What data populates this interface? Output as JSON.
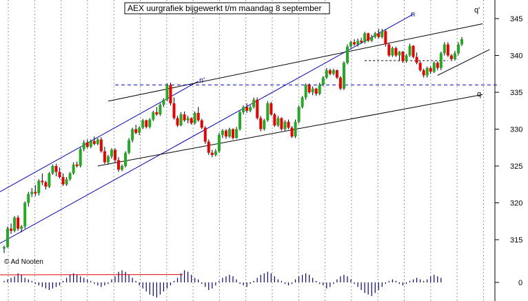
{
  "chart_data": {
    "type": "candlestick",
    "title": "AEX uurgrafiek bijgewerkt t/m maandag 8 september",
    "credit": "© Ad Nooten",
    "ylim": [
      310,
      348
    ],
    "yticks": [
      345,
      340,
      335,
      330,
      325,
      320,
      315
    ],
    "volume_tick": "0",
    "line_labels": {
      "q_prime": "q'",
      "q": "q",
      "n_top": "n",
      "n_mid": "n'"
    },
    "colors": {
      "up": "#22aa22",
      "down": "#ee0000",
      "channel_blue": "#0000cc",
      "trend_black": "#000000",
      "dash_blue": "#0000cc",
      "grid": "#999999",
      "volume": "#000080",
      "volume_line": "#dd0000"
    },
    "candles": [
      [
        313.8,
        314.2,
        313.2,
        314.0
      ],
      [
        314.0,
        316.8,
        313.9,
        316.5
      ],
      [
        316.5,
        317.2,
        315.8,
        316.2
      ],
      [
        316.2,
        318.2,
        316.0,
        318.0
      ],
      [
        318.0,
        318.3,
        316.2,
        316.5
      ],
      [
        316.5,
        317.0,
        316.0,
        316.8
      ],
      [
        316.8,
        320.2,
        316.5,
        320.0
      ],
      [
        320.0,
        321.5,
        319.5,
        321.2
      ],
      [
        321.2,
        322.0,
        320.8,
        321.5
      ],
      [
        321.5,
        322.4,
        320.9,
        321.3
      ],
      [
        321.3,
        323.2,
        321.0,
        323.0
      ],
      [
        323.0,
        324.0,
        322.4,
        322.8
      ],
      [
        322.8,
        323.0,
        321.8,
        322.2
      ],
      [
        322.2,
        324.2,
        322.0,
        324.0
      ],
      [
        324.0,
        325.2,
        323.8,
        325.0
      ],
      [
        325.0,
        325.3,
        323.6,
        324.2
      ],
      [
        324.2,
        324.8,
        323.3,
        323.5
      ],
      [
        323.5,
        324.0,
        322.3,
        322.5
      ],
      [
        322.5,
        323.5,
        322.3,
        323.2
      ],
      [
        323.2,
        324.2,
        323.0,
        324.0
      ],
      [
        324.0,
        325.5,
        323.8,
        325.2
      ],
      [
        325.2,
        325.6,
        324.8,
        325.0
      ],
      [
        325.0,
        327.5,
        324.8,
        327.3
      ],
      [
        327.3,
        328.5,
        327.0,
        328.2
      ],
      [
        328.2,
        328.6,
        327.4,
        327.6
      ],
      [
        327.6,
        328.6,
        327.4,
        328.4
      ],
      [
        328.4,
        329.0,
        327.8,
        328.0
      ],
      [
        328.0,
        328.8,
        327.8,
        328.6
      ],
      [
        328.6,
        328.9,
        326.8,
        327.0
      ],
      [
        327.0,
        327.6,
        325.3,
        325.5
      ],
      [
        325.5,
        326.5,
        325.3,
        326.3
      ],
      [
        326.3,
        327.4,
        326.0,
        327.2
      ],
      [
        327.2,
        327.4,
        325.5,
        325.8
      ],
      [
        325.8,
        326.2,
        324.2,
        324.5
      ],
      [
        324.5,
        325.2,
        324.3,
        325.0
      ],
      [
        325.0,
        327.0,
        324.8,
        326.8
      ],
      [
        326.8,
        328.8,
        326.6,
        328.5
      ],
      [
        328.5,
        330.2,
        328.2,
        330.0
      ],
      [
        330.0,
        330.6,
        329.3,
        329.5
      ],
      [
        329.5,
        330.4,
        329.2,
        330.2
      ],
      [
        330.2,
        331.4,
        330.0,
        331.2
      ],
      [
        331.2,
        331.3,
        330.1,
        330.3
      ],
      [
        330.3,
        331.5,
        330.1,
        331.3
      ],
      [
        331.3,
        332.5,
        331.1,
        332.3
      ],
      [
        332.3,
        333.0,
        331.8,
        332.0
      ],
      [
        332.0,
        333.5,
        331.8,
        333.3
      ],
      [
        333.3,
        334.2,
        333.0,
        334.0
      ],
      [
        334.0,
        336.2,
        333.8,
        336.0
      ],
      [
        336.0,
        336.3,
        333.2,
        333.5
      ],
      [
        333.5,
        334.3,
        331.3,
        331.5
      ],
      [
        331.5,
        331.8,
        330.3,
        330.5
      ],
      [
        330.5,
        332.3,
        330.4,
        332.0
      ],
      [
        332.0,
        332.4,
        331.0,
        331.2
      ],
      [
        331.2,
        331.8,
        330.8,
        331.5
      ],
      [
        331.5,
        331.6,
        330.6,
        330.8
      ],
      [
        330.8,
        332.4,
        330.6,
        332.2
      ],
      [
        332.2,
        333.0,
        331.0,
        331.2
      ],
      [
        331.2,
        331.4,
        330.0,
        330.2
      ],
      [
        330.2,
        330.4,
        328.0,
        328.3
      ],
      [
        328.3,
        328.6,
        326.5,
        326.8
      ],
      [
        326.8,
        327.2,
        326.2,
        326.5
      ],
      [
        326.5,
        327.3,
        326.3,
        327.0
      ],
      [
        327.0,
        329.5,
        326.8,
        329.2
      ],
      [
        329.2,
        330.0,
        328.8,
        329.8
      ],
      [
        329.8,
        330.0,
        328.7,
        329.0
      ],
      [
        329.0,
        330.2,
        328.8,
        330.0
      ],
      [
        330.0,
        330.1,
        328.6,
        328.8
      ],
      [
        328.8,
        330.3,
        328.7,
        330.0
      ],
      [
        330.0,
        332.5,
        329.8,
        332.3
      ],
      [
        332.3,
        333.2,
        332.0,
        333.0
      ],
      [
        333.0,
        333.5,
        332.2,
        332.5
      ],
      [
        332.5,
        333.2,
        332.3,
        333.0
      ],
      [
        333.0,
        334.3,
        332.8,
        334.0
      ],
      [
        334.0,
        334.3,
        331.3,
        331.5
      ],
      [
        331.5,
        331.8,
        329.7,
        330.0
      ],
      [
        330.0,
        331.4,
        329.8,
        331.2
      ],
      [
        331.2,
        333.8,
        331.0,
        333.5
      ],
      [
        333.5,
        333.7,
        331.8,
        332.0
      ],
      [
        332.0,
        332.2,
        330.3,
        330.5
      ],
      [
        330.5,
        331.8,
        330.3,
        331.5
      ],
      [
        331.5,
        331.6,
        329.8,
        330.0
      ],
      [
        330.0,
        331.2,
        329.8,
        331.0
      ],
      [
        331.0,
        331.3,
        330.0,
        330.2
      ],
      [
        330.2,
        330.4,
        328.8,
        329.0
      ],
      [
        329.0,
        331.3,
        328.8,
        331.0
      ],
      [
        331.0,
        333.2,
        330.8,
        333.0
      ],
      [
        333.0,
        334.5,
        332.8,
        334.3
      ],
      [
        334.3,
        336.2,
        334.0,
        336.0
      ],
      [
        336.0,
        336.2,
        334.8,
        335.0
      ],
      [
        335.0,
        335.8,
        334.6,
        335.5
      ],
      [
        335.5,
        335.6,
        334.5,
        334.8
      ],
      [
        334.8,
        336.3,
        334.6,
        336.0
      ],
      [
        336.0,
        337.2,
        335.8,
        337.0
      ],
      [
        337.0,
        338.3,
        336.8,
        338.0
      ],
      [
        338.0,
        338.2,
        337.3,
        337.5
      ],
      [
        337.5,
        338.2,
        337.3,
        338.0
      ],
      [
        338.0,
        338.1,
        336.8,
        337.0
      ],
      [
        337.0,
        337.2,
        335.3,
        335.5
      ],
      [
        335.5,
        339.2,
        335.3,
        339.0
      ],
      [
        339.0,
        341.5,
        338.8,
        341.2
      ],
      [
        341.2,
        342.0,
        341.0,
        341.8
      ],
      [
        341.8,
        342.2,
        341.3,
        341.5
      ],
      [
        341.5,
        342.3,
        341.2,
        342.0
      ],
      [
        342.0,
        342.4,
        341.6,
        341.8
      ],
      [
        341.8,
        343.2,
        341.6,
        343.0
      ],
      [
        343.0,
        343.1,
        341.8,
        342.0
      ],
      [
        342.0,
        342.8,
        341.8,
        342.5
      ],
      [
        342.5,
        343.2,
        342.3,
        343.0
      ],
      [
        343.0,
        343.6,
        342.3,
        342.5
      ],
      [
        342.5,
        343.6,
        342.3,
        343.3
      ],
      [
        343.3,
        343.5,
        341.2,
        341.5
      ],
      [
        341.5,
        341.6,
        339.8,
        340.0
      ],
      [
        340.0,
        341.2,
        339.8,
        341.0
      ],
      [
        341.0,
        341.2,
        339.8,
        340.0
      ],
      [
        340.0,
        340.6,
        339.3,
        340.5
      ],
      [
        340.5,
        340.6,
        339.0,
        339.2
      ],
      [
        339.2,
        340.2,
        339.0,
        340.0
      ],
      [
        340.0,
        341.6,
        339.8,
        341.3
      ],
      [
        341.3,
        341.4,
        339.6,
        339.8
      ],
      [
        339.8,
        340.4,
        338.8,
        339.0
      ],
      [
        339.0,
        339.2,
        337.8,
        338.0
      ],
      [
        338.0,
        338.2,
        337.0,
        337.3
      ],
      [
        337.3,
        338.5,
        337.0,
        338.3
      ],
      [
        338.3,
        338.5,
        337.5,
        337.8
      ],
      [
        337.8,
        339.2,
        337.6,
        339.0
      ],
      [
        339.0,
        339.2,
        338.0,
        338.3
      ],
      [
        338.3,
        340.5,
        338.0,
        340.3
      ],
      [
        340.3,
        341.8,
        340.0,
        341.5
      ],
      [
        341.5,
        341.8,
        339.8,
        340.0
      ],
      [
        340.0,
        340.2,
        339.2,
        339.5
      ],
      [
        339.5,
        340.6,
        339.3,
        340.3
      ],
      [
        340.3,
        341.8,
        340.0,
        341.5
      ],
      [
        341.5,
        342.5,
        341.3,
        342.2
      ]
    ],
    "volume": [
      1,
      2,
      3,
      4,
      6,
      5,
      3,
      2,
      1,
      -1,
      -2,
      -3,
      -4,
      -5,
      -4,
      -3,
      -2,
      1,
      3,
      5,
      6,
      5,
      4,
      3,
      2,
      1,
      -1,
      -2,
      -3,
      -2,
      -1,
      2,
      4,
      7,
      8,
      7,
      5,
      3,
      1,
      -2,
      -4,
      -6,
      -8,
      -9,
      -10,
      -8,
      -6,
      -4,
      -2,
      1,
      3,
      6,
      8,
      7,
      5,
      3,
      2,
      -1,
      -3,
      -5,
      -4,
      -2,
      1,
      3,
      4,
      5,
      4,
      2,
      -1,
      -2,
      -3,
      -1,
      1,
      3,
      5,
      6,
      7,
      6,
      4,
      2,
      1,
      -1,
      -2,
      -1,
      2,
      4,
      5,
      6,
      5,
      3,
      1,
      -1,
      -2,
      -4,
      -3,
      -1,
      2,
      4,
      5,
      4,
      2,
      -1,
      -3,
      -5,
      -7,
      -8,
      -9,
      -7,
      -5,
      -3,
      -1,
      1,
      2,
      1,
      -1,
      -2,
      -1,
      1,
      2,
      3,
      2,
      1,
      2,
      4,
      5,
      4,
      3
    ],
    "volume_line": {
      "from": 0.5,
      "to": 0.2
    }
  }
}
